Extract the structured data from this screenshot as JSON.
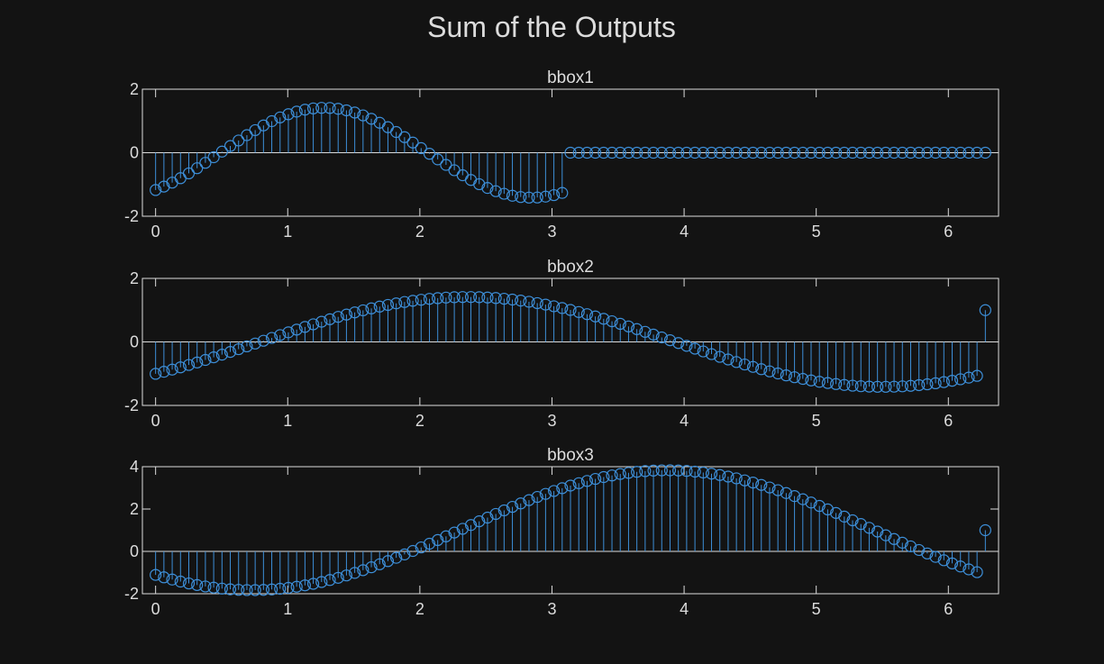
{
  "figure": {
    "title": "Sum of the Outputs",
    "background_color": "#131313",
    "axes_color": "#dcdcdc",
    "stem_color": "#3d8fd9"
  },
  "chart_data": [
    {
      "type": "stem",
      "title": "bbox1",
      "xlim": [
        -0.1,
        6.38
      ],
      "ylim": [
        -2,
        2
      ],
      "xticks": [
        0,
        1,
        2,
        3,
        4,
        5,
        6
      ],
      "yticks": [
        -2,
        0,
        2
      ],
      "x_start": 0,
      "x_step": 0.0628,
      "count": 101,
      "function": "sqrt(2)*sin(x*2 - 0.98) for x <= 3.1, otherwise 0",
      "nonzero_until": 3.1,
      "y_range_observed": [
        -1.41,
        1.41
      ]
    },
    {
      "type": "stem",
      "title": "bbox2",
      "xlim": [
        -0.1,
        6.38
      ],
      "ylim": [
        -2,
        2
      ],
      "xticks": [
        0,
        1,
        2,
        3,
        4,
        5,
        6
      ],
      "yticks": [
        -2,
        0,
        2
      ],
      "x_start": 0,
      "x_step": 0.0628,
      "count": 101,
      "function": "sqrt(2)*sin(x - 0.79) for x < 6.25; last point = 1",
      "last_point": [
        6.28,
        1
      ],
      "y_range_observed": [
        -1.41,
        1.41
      ]
    },
    {
      "type": "stem",
      "title": "bbox3",
      "xlim": [
        -0.1,
        6.38
      ],
      "ylim": [
        -2,
        4
      ],
      "xticks": [
        0,
        1,
        2,
        3,
        4,
        5,
        6
      ],
      "yticks": [
        -2,
        0,
        2,
        4
      ],
      "x_start": 0,
      "x_step": 0.0628,
      "count": 101,
      "function": "1 + 2.83*sin(x - 2.3) for x < 6.25; last point = 1",
      "last_point": [
        6.28,
        1
      ],
      "y_range_observed": [
        -1.83,
        3.83
      ]
    }
  ]
}
